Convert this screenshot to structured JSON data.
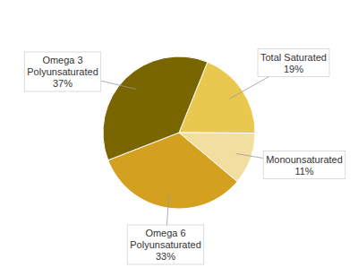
{
  "chart_data": {
    "type": "pie",
    "categories": [
      "Total Saturated",
      "Monounsaturated",
      "Omega 6\nPolyunsaturated",
      "Omega 3\nPolyunsaturated"
    ],
    "values": [
      19,
      11,
      33,
      37
    ],
    "value_labels": [
      "19%",
      "11%",
      "33%",
      "37%"
    ],
    "colors": [
      "#E8C84E",
      "#F2DFA0",
      "#D4A020",
      "#7A6600"
    ],
    "data_labels": true
  }
}
